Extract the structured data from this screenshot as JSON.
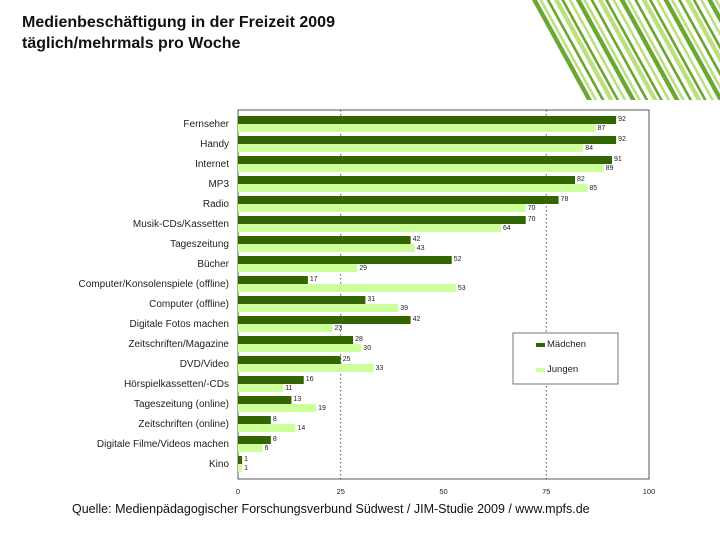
{
  "slide": {
    "title_line1": "Medienbeschäftigung in der Freizeit 2009",
    "title_line2": "täglich/mehrmals pro Woche",
    "source": "Quelle: Medienpädagogischer Forschungsverbund Südwest / JIM-Studie 2009 / www.mpfs.de"
  },
  "colors": {
    "maedchen": "#336600",
    "jungen": "#ccff99",
    "deco_dark": "#5a9e1c",
    "deco_light": "#b5dd6f"
  },
  "chart_data": {
    "type": "bar",
    "orientation": "horizontal",
    "title": "Medienbeschäftigung in der Freizeit 2009",
    "subtitle": "täglich/mehrmals pro Woche",
    "categories": [
      "Fernseher",
      "Handy",
      "Internet",
      "MP3",
      "Radio",
      "Musik-CDs/Kassetten",
      "Tageszeitung",
      "Bücher",
      "Computer/Konsolenspiele (offline)",
      "Computer (offline)",
      "Digitale Fotos machen",
      "Zeitschriften/Magazine",
      "DVD/Video",
      "Hörspielkassetten/-CDs",
      "Tageszeitung (online)",
      "Zeitschriften (online)",
      "Digitale Filme/Videos machen",
      "Kino"
    ],
    "series": [
      {
        "name": "Mädchen",
        "values": [
          92,
          92,
          91,
          82,
          78,
          70,
          42,
          52,
          17,
          31,
          42,
          28,
          25,
          16,
          13,
          8,
          8,
          1
        ]
      },
      {
        "name": "Jungen",
        "values": [
          87,
          84,
          89,
          85,
          70,
          64,
          43,
          29,
          53,
          39,
          23,
          30,
          33,
          11,
          19,
          14,
          6,
          1
        ]
      }
    ],
    "value_labels": {
      "Mädchen": [
        "92",
        "92",
        "91",
        "82",
        "78",
        "70",
        "42",
        "52",
        "17",
        "31",
        "42",
        "28",
        "25",
        "16",
        "13",
        "8",
        "8",
        "1"
      ],
      "Jungen": [
        "87",
        "84",
        "89",
        "85",
        "70",
        "64",
        "43",
        "29",
        "53",
        "39",
        "23",
        "30",
        "33",
        "11",
        "19",
        "14",
        "6",
        "1"
      ]
    },
    "xticks": [
      "0",
      "25",
      "50",
      "75",
      "100"
    ],
    "xlim": [
      0,
      100
    ],
    "gridlines": [
      25,
      75
    ],
    "legend": [
      "Mädchen",
      "Jungen"
    ],
    "legend_position": "right"
  }
}
